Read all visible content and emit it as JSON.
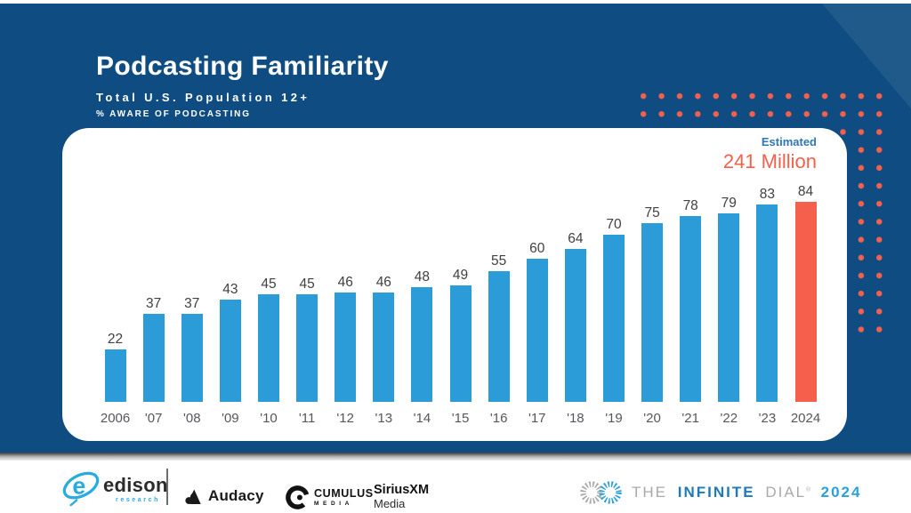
{
  "header": {
    "title": "Podcasting Familiarity",
    "subtitle": "Total U.S. Population 12+",
    "measure_note": "% AWARE OF PODCASTING"
  },
  "chart_data": {
    "type": "bar",
    "title": "Podcasting Familiarity",
    "subtitle": "Total U.S. Population 12+",
    "ylabel": "% aware of podcasting",
    "categories": [
      "2006",
      "'07",
      "'08",
      "'09",
      "'10",
      "'11",
      "'12",
      "'13",
      "'14",
      "'15",
      "'16",
      "'17",
      "'18",
      "'19",
      "'20",
      "'21",
      "'22",
      "'23",
      "2024"
    ],
    "values": [
      22,
      37,
      37,
      43,
      45,
      45,
      46,
      46,
      48,
      49,
      55,
      60,
      64,
      70,
      75,
      78,
      79,
      83,
      84
    ],
    "highlight_index": 18,
    "annotation": {
      "label": "Estimated",
      "value": "241 Million"
    },
    "bar_color": "#2B9CD8",
    "highlight_color": "#F4604C",
    "ylim": [
      0,
      100
    ],
    "grid": false,
    "data_labels": true,
    "legend_position": "none"
  },
  "footer": {
    "edison": {
      "name": "edison",
      "sub": "research"
    },
    "audacy": {
      "name": "Audacy"
    },
    "cumulus": {
      "name": "CUMULUS",
      "sub": "MEDIA"
    },
    "siriusxm": {
      "name": "SiriusXM",
      "sub": "Media"
    },
    "infinite_dial": {
      "the": "THE",
      "infinite": "INFINITE",
      "dial": "DIAL",
      "reg": "®",
      "year": "2024"
    }
  },
  "colors": {
    "background_panel": "#0E4C82",
    "bar_blue": "#2B9CD8",
    "accent_coral": "#F4604C",
    "estimated_blue": "#2E76B5",
    "edison_blue": "#29ABE2",
    "infinite_dial_blue": "#1F7ABD",
    "infinite_dial_year_blue": "#2BA0DB",
    "logo_gray": "#A7A9AC"
  }
}
